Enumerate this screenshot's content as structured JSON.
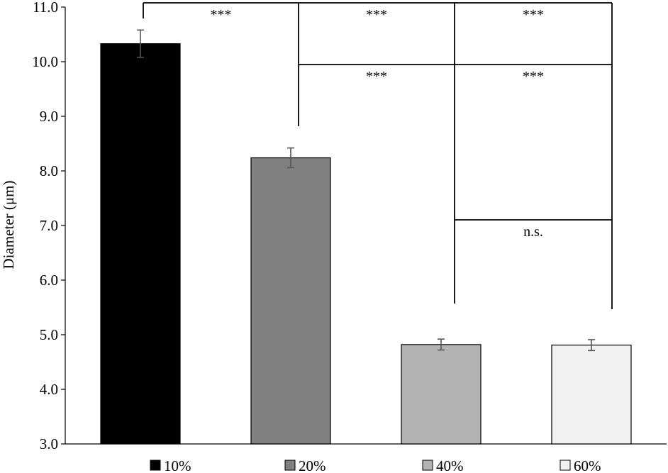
{
  "chart_data": {
    "type": "bar",
    "ylabel": "Diameter (μm)",
    "ylim": [
      3.0,
      11.0
    ],
    "yticks": [
      "3.0",
      "4.0",
      "5.0",
      "6.0",
      "7.0",
      "8.0",
      "9.0",
      "10.0",
      "11.0"
    ],
    "grid": false,
    "legend": "bottom",
    "series": [
      {
        "name": "10%",
        "value": 10.33,
        "error": 0.25,
        "color": "#000000"
      },
      {
        "name": "20%",
        "value": 8.24,
        "error": 0.18,
        "color": "#808080"
      },
      {
        "name": "40%",
        "value": 4.82,
        "error": 0.1,
        "color": "#b3b3b3"
      },
      {
        "name": "60%",
        "value": 4.81,
        "error": 0.1,
        "color": "#f2f2f2"
      }
    ],
    "significance": [
      {
        "from": "10%",
        "to": "20%",
        "label": "***"
      },
      {
        "from": "20%",
        "to": "40%",
        "label": "***"
      },
      {
        "from": "40%",
        "to": "60%",
        "label": "***"
      },
      {
        "from": "20%",
        "to": "40%",
        "level": 2,
        "label": "***"
      },
      {
        "from": "40%",
        "to": "60%",
        "level": 2,
        "label": "***"
      },
      {
        "from": "40%",
        "to": "60%",
        "level": 3,
        "label": "n.s."
      }
    ]
  }
}
